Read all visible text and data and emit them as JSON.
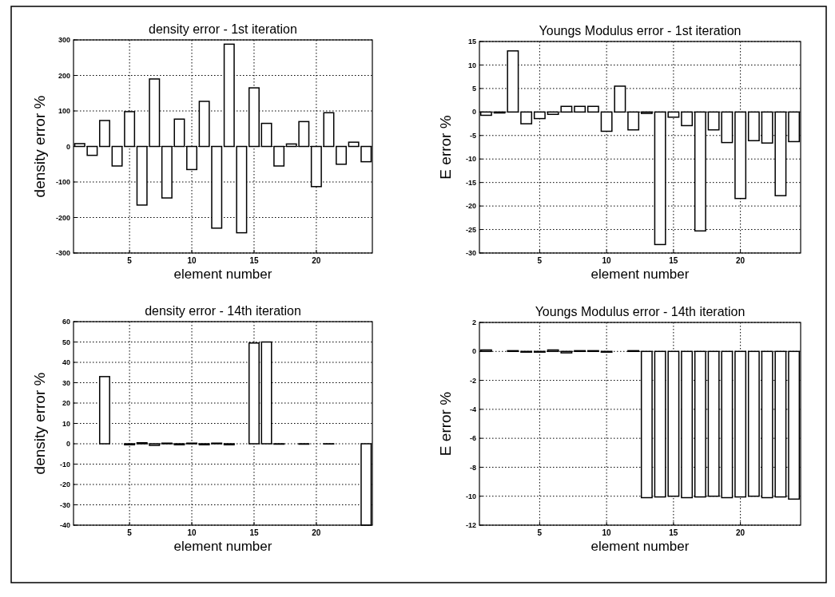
{
  "chart_data": [
    {
      "type": "bar",
      "title": "density error - 1st iteration",
      "xlabel": "element number",
      "ylabel": "density error %",
      "x": [
        1,
        2,
        3,
        4,
        5,
        6,
        7,
        8,
        9,
        10,
        11,
        12,
        13,
        14,
        15,
        16,
        17,
        18,
        19,
        20,
        21,
        22,
        23,
        24
      ],
      "values": [
        8,
        -25,
        73,
        -55,
        98,
        -165,
        190,
        -145,
        77,
        -65,
        127,
        -230,
        288,
        -243,
        165,
        65,
        -55,
        7,
        70,
        -113,
        95,
        -50,
        12,
        -43
      ],
      "color": "#ffffff",
      "xlim": [
        0.5,
        24.5
      ],
      "xticks": [
        5,
        10,
        15,
        20
      ],
      "ylim": [
        -300,
        300
      ],
      "yticks": [
        -300,
        -200,
        -100,
        0,
        100,
        200,
        300
      ],
      "grid": true
    },
    {
      "type": "bar",
      "title": "Youngs Modulus error - 1st iteration",
      "xlabel": "element number",
      "ylabel": "E error %",
      "x": [
        1,
        2,
        3,
        4,
        5,
        6,
        7,
        8,
        9,
        10,
        11,
        12,
        13,
        14,
        15,
        16,
        17,
        18,
        19,
        20,
        21,
        22,
        23,
        24
      ],
      "values": [
        -0.7,
        -0.2,
        13,
        -2.5,
        -1.4,
        -0.5,
        1.2,
        1.2,
        1.2,
        -4.1,
        5.5,
        -3.8,
        -0.3,
        -28.2,
        -1.1,
        -2.9,
        -25.3,
        -3.8,
        -6.5,
        -18.4,
        -6.1,
        -6.6,
        -17.8,
        -6.3
      ],
      "color": "#ffffff",
      "xlim": [
        0.5,
        24.5
      ],
      "xticks": [
        5,
        10,
        15,
        20
      ],
      "ylim": [
        -30,
        15
      ],
      "yticks": [
        -30,
        -25,
        -20,
        -15,
        -10,
        -5,
        0,
        5,
        10,
        15
      ],
      "grid": true
    },
    {
      "type": "bar",
      "title": "density error - 14th iteration",
      "xlabel": "element number",
      "ylabel": "density error %",
      "x": [
        1,
        2,
        3,
        4,
        5,
        6,
        7,
        8,
        9,
        10,
        11,
        12,
        13,
        14,
        15,
        16,
        17,
        18,
        19,
        20,
        21,
        22,
        23,
        24
      ],
      "values": [
        0,
        0,
        33,
        0,
        -0.5,
        0.5,
        -0.8,
        0.3,
        -0.5,
        0.3,
        -0.5,
        0.3,
        -0.5,
        0,
        49.5,
        50,
        -0.2,
        0,
        -0.2,
        0,
        -0.1,
        0,
        0,
        -40
      ],
      "color": "#ffffff",
      "xlim": [
        0.5,
        24.5
      ],
      "xticks": [
        5,
        10,
        15,
        20
      ],
      "ylim": [
        -40,
        60
      ],
      "yticks": [
        -40,
        -30,
        -20,
        -10,
        0,
        10,
        20,
        30,
        40,
        50,
        60
      ],
      "grid": true
    },
    {
      "type": "bar",
      "title": "Youngs Modulus error - 14th iteration",
      "xlabel": "element number",
      "ylabel": "E error %",
      "x": [
        1,
        2,
        3,
        4,
        5,
        6,
        7,
        8,
        9,
        10,
        11,
        12,
        13,
        14,
        15,
        16,
        17,
        18,
        19,
        20,
        21,
        22,
        23,
        24
      ],
      "values": [
        0.1,
        0,
        0.05,
        -0.05,
        -0.05,
        0.1,
        -0.1,
        0.05,
        0.05,
        -0.05,
        0,
        0.05,
        -10.1,
        -10.05,
        -10,
        -10.1,
        -10.05,
        -10,
        -10.1,
        -10.05,
        -10,
        -10.1,
        -10.05,
        -10.2
      ],
      "color": "#ffffff",
      "xlim": [
        0.5,
        24.5
      ],
      "xticks": [
        5,
        10,
        15,
        20
      ],
      "ylim": [
        -12,
        2
      ],
      "yticks": [
        -12,
        -10,
        -8,
        -6,
        -4,
        -2,
        0,
        2
      ],
      "grid": true
    }
  ]
}
